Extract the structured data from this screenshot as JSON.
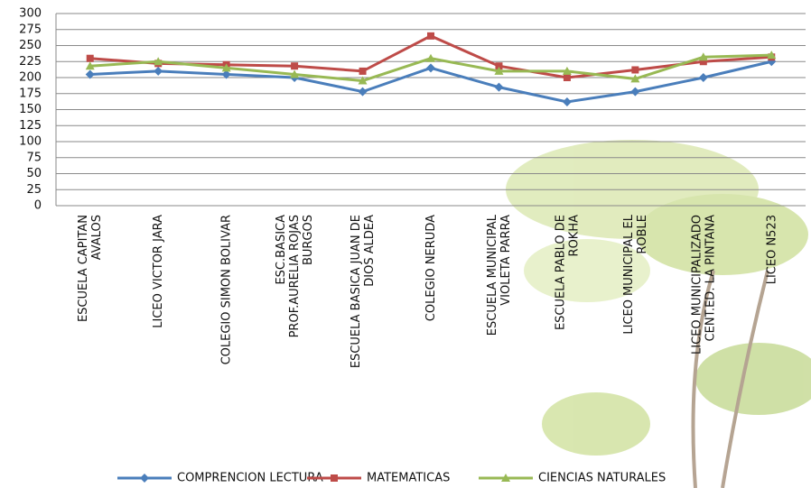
{
  "chart_data": {
    "type": "line",
    "categories": [
      "ESCUELA CAPITAN\nAVALOS",
      "LICEO VICTOR JARA",
      "COLEGIO SIMON BOLIVAR",
      "ESC.BASICA\nPROF.AURELIA ROJAS\nBURGOS",
      "ESCUELA BASICA JUAN DE\nDIOS ALDEA",
      "COLEGIO NERUDA",
      "ESCUELA MUNICIPAL\nVIOLETA PARRA",
      "ESCUELA PABLO DE\nROKHA",
      "LICEO MUNICIPAL EL\nROBLE",
      "LICEO MUNICIPALIZADO\nCENT.ED. LA PINTANA",
      "LICEO N523"
    ],
    "series": [
      {
        "name": "COMPRENCION LECTURA",
        "color": "#4a7ebb",
        "marker": "diamond",
        "values": [
          205,
          210,
          205,
          200,
          178,
          215,
          185,
          162,
          178,
          200,
          225
        ]
      },
      {
        "name": "MATEMATICAS",
        "color": "#be4b48",
        "marker": "square",
        "values": [
          230,
          222,
          220,
          218,
          210,
          265,
          218,
          200,
          212,
          225,
          232
        ]
      },
      {
        "name": "CIENCIAS NATURALES",
        "color": "#98b954",
        "marker": "triangle",
        "values": [
          218,
          225,
          215,
          205,
          195,
          230,
          210,
          210,
          198,
          232,
          235
        ]
      }
    ],
    "ylim": [
      0,
      300
    ],
    "yticks": [
      0,
      25,
      50,
      75,
      100,
      125,
      150,
      175,
      200,
      225,
      250,
      275,
      300
    ],
    "grid": true,
    "legend": "bottom"
  }
}
